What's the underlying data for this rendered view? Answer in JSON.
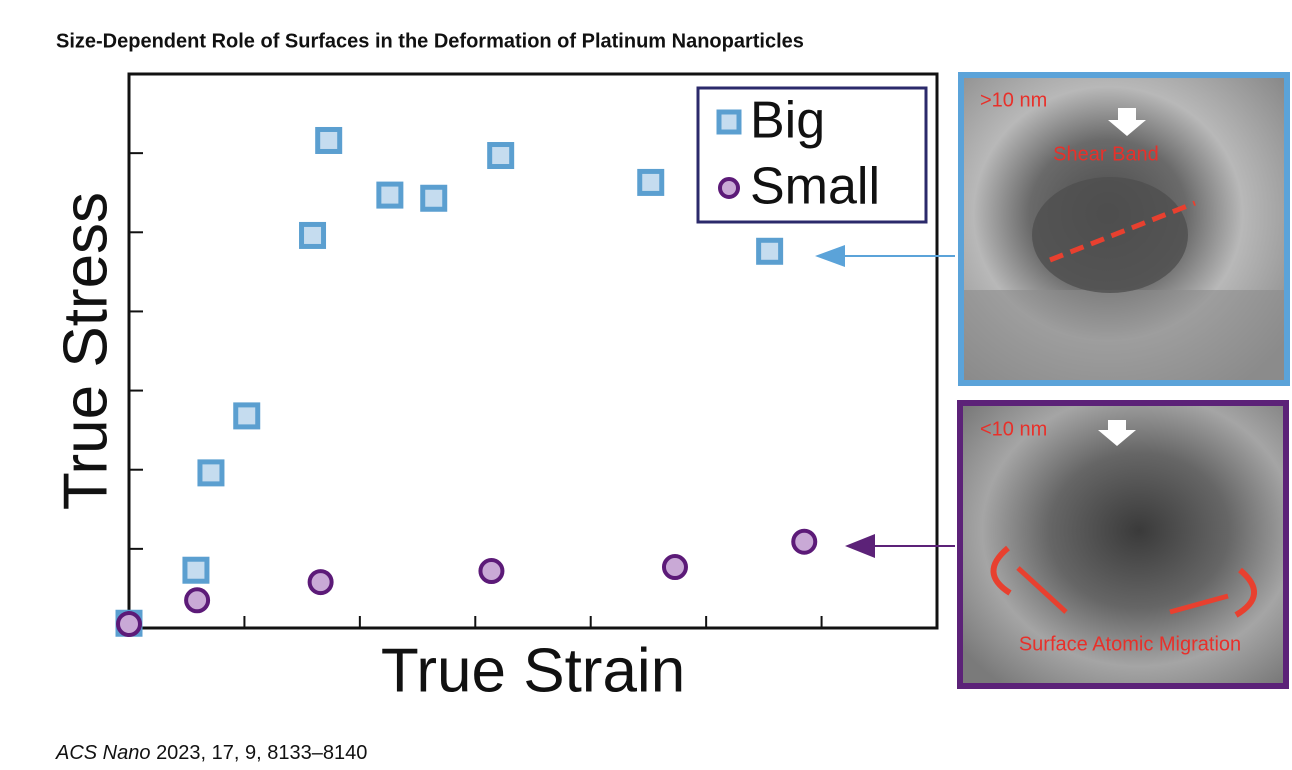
{
  "chart_data": {
    "type": "scatter",
    "title": "Size-Dependent Role of Surfaces in the Deformation of Platinum Nanoparticles",
    "x_label": "True Strain",
    "y_label": "True Stress",
    "xlim": [
      0,
      7
    ],
    "ylim": [
      0,
      7
    ],
    "xticks": [
      1,
      2,
      3,
      4,
      5,
      6
    ],
    "yticks": [
      1,
      2,
      3,
      4,
      5,
      6
    ],
    "legend": "top-right",
    "series": [
      {
        "name": "Big",
        "color": "#5b9fd0",
        "marker": "square",
        "x": [
          0,
          0.58,
          0.71,
          1.02,
          1.59,
          1.73,
          2.26,
          2.64,
          3.22,
          4.52,
          5.55
        ],
        "values": [
          0.06,
          0.73,
          1.96,
          2.68,
          4.96,
          6.16,
          5.47,
          5.43,
          5.97,
          5.63,
          4.76
        ]
      },
      {
        "name": "Small",
        "color": "#5c1a78",
        "marker": "circle",
        "x": [
          0,
          0.59,
          1.66,
          3.14,
          4.73,
          5.85
        ],
        "values": [
          0.05,
          0.35,
          0.58,
          0.72,
          0.77,
          1.09
        ]
      }
    ],
    "panels": [
      {
        "size_label": ">10 nm",
        "caption": "Shear Band"
      },
      {
        "size_label": "<10 nm",
        "caption": "Surface Atomic Migration"
      }
    ],
    "source": {
      "journal": "ACS Nano",
      "citation": "2023, 17, 9, 8133–8140"
    }
  }
}
